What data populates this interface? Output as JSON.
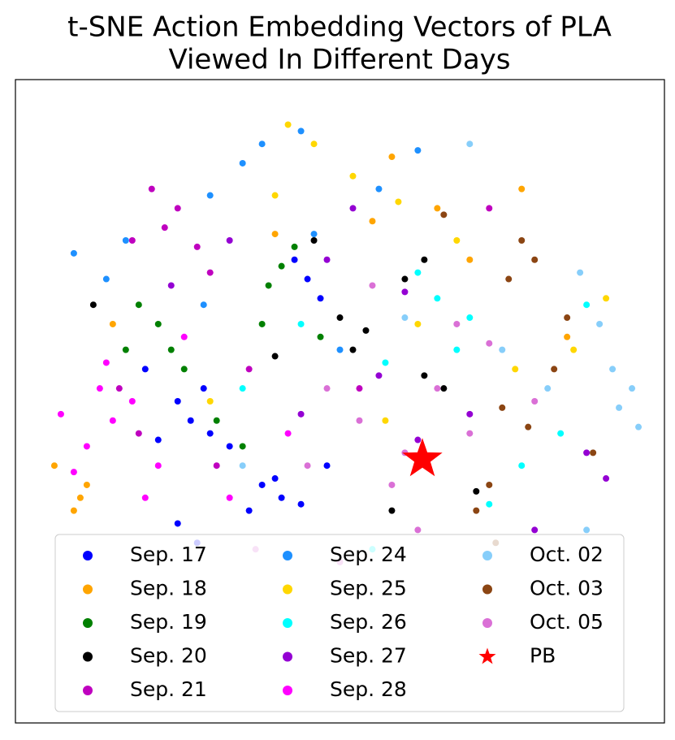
{
  "chart_data": {
    "type": "scatter",
    "title": [
      "t-SNE Action Embedding Vectors of PLA",
      "Viewed In Different Days"
    ],
    "xlim": [
      0,
      100
    ],
    "ylim": [
      0,
      100
    ],
    "series": [
      {
        "name": "Sep. 17",
        "color": "#0000ff",
        "x": [
          27,
          25,
          30,
          22,
          29,
          38,
          41,
          36,
          40,
          44,
          25,
          28,
          45,
          43,
          47,
          20,
          33,
          48
        ],
        "y": [
          47,
          50,
          45,
          44,
          52,
          37,
          35,
          33,
          38,
          34,
          31,
          28,
          69,
          72,
          66,
          55,
          43,
          40
        ]
      },
      {
        "name": "Sep. 18",
        "color": "#ffa500",
        "x": [
          10,
          9,
          11,
          78,
          65,
          70,
          15,
          58,
          40,
          85,
          6,
          55
        ],
        "y": [
          35,
          33,
          37,
          83,
          80,
          72,
          62,
          88,
          76,
          60,
          40,
          78
        ]
      },
      {
        "name": "Sep. 19",
        "color": "#008000",
        "x": [
          24,
          22,
          26,
          41,
          39,
          43,
          35,
          31,
          19,
          47,
          17,
          38
        ],
        "y": [
          58,
          62,
          55,
          71,
          68,
          74,
          43,
          47,
          65,
          60,
          58,
          62
        ]
      },
      {
        "name": "Sep. 20",
        "color": "#000000",
        "x": [
          54,
          52,
          63,
          60,
          63,
          66,
          50,
          46,
          12,
          58,
          71,
          40
        ],
        "y": [
          61,
          58,
          72,
          69,
          54,
          52,
          63,
          75,
          65,
          33,
          36,
          57
        ]
      },
      {
        "name": "Sep. 21",
        "color": "#bf00bf",
        "x": [
          25,
          21,
          23,
          19,
          28,
          18,
          30,
          73,
          53,
          31,
          36,
          16
        ],
        "y": [
          80,
          83,
          77,
          45,
          74,
          75,
          70,
          80,
          52,
          40,
          55,
          52
        ]
      },
      {
        "name": "Sep. 24",
        "color": "#1e90ff",
        "x": [
          35,
          44,
          38,
          30,
          17,
          62,
          14,
          46,
          56,
          9,
          29,
          50
        ],
        "y": [
          87,
          92,
          90,
          82,
          75,
          89,
          69,
          76,
          83,
          73,
          65,
          58
        ]
      },
      {
        "name": "Sep. 25",
        "color": "#ffd700",
        "x": [
          46,
          59,
          52,
          42,
          68,
          62,
          77,
          91,
          30,
          57,
          86,
          40
        ],
        "y": [
          90,
          81,
          85,
          93,
          75,
          62,
          55,
          66,
          50,
          47,
          58,
          82
        ]
      },
      {
        "name": "Sep. 26",
        "color": "#00ffff",
        "x": [
          65,
          68,
          73,
          62,
          70,
          57,
          78,
          84,
          35,
          44,
          88,
          55
        ],
        "y": [
          66,
          58,
          34,
          70,
          63,
          56,
          40,
          45,
          52,
          62,
          65,
          27
        ]
      },
      {
        "name": "Sep. 27",
        "color": "#9400d3",
        "x": [
          56,
          88,
          48,
          60,
          33,
          70,
          80,
          44,
          91,
          24,
          62,
          52
        ],
        "y": [
          54,
          42,
          72,
          67,
          75,
          48,
          30,
          48,
          38,
          68,
          44,
          80
        ]
      },
      {
        "name": "Sep. 28",
        "color": "#ff00ff",
        "x": [
          13,
          9,
          15,
          11,
          18,
          7,
          26,
          22,
          33,
          42,
          20,
          14
        ],
        "y": [
          52,
          39,
          47,
          43,
          50,
          48,
          60,
          40,
          35,
          45,
          35,
          56
        ]
      },
      {
        "name": "Oct. 02",
        "color": "#87cefa",
        "x": [
          90,
          93,
          92,
          87,
          95,
          75,
          82,
          60,
          35,
          88,
          96,
          70
        ],
        "y": [
          62,
          49,
          55,
          70,
          52,
          58,
          52,
          63,
          40,
          30,
          46,
          90
        ]
      },
      {
        "name": "Oct. 03",
        "color": "#8b4513",
        "x": [
          78,
          75,
          73,
          80,
          76,
          85,
          79,
          71,
          83,
          89,
          66,
          74
        ],
        "y": [
          75,
          49,
          37,
          72,
          69,
          63,
          46,
          33,
          55,
          42,
          79,
          28
        ]
      },
      {
        "name": "Oct. 05",
        "color": "#da70d6",
        "x": [
          53,
          73,
          58,
          48,
          60,
          65,
          68,
          55,
          45,
          80,
          62,
          50,
          37,
          70
        ],
        "y": [
          47,
          59,
          37,
          52,
          42,
          52,
          62,
          68,
          40,
          50,
          30,
          25,
          27,
          45
        ]
      },
      {
        "name": "PB",
        "color": "#ff0000",
        "marker": "star",
        "x": [
          62.7
        ],
        "y": [
          41
        ]
      }
    ],
    "legend": "lower center"
  }
}
